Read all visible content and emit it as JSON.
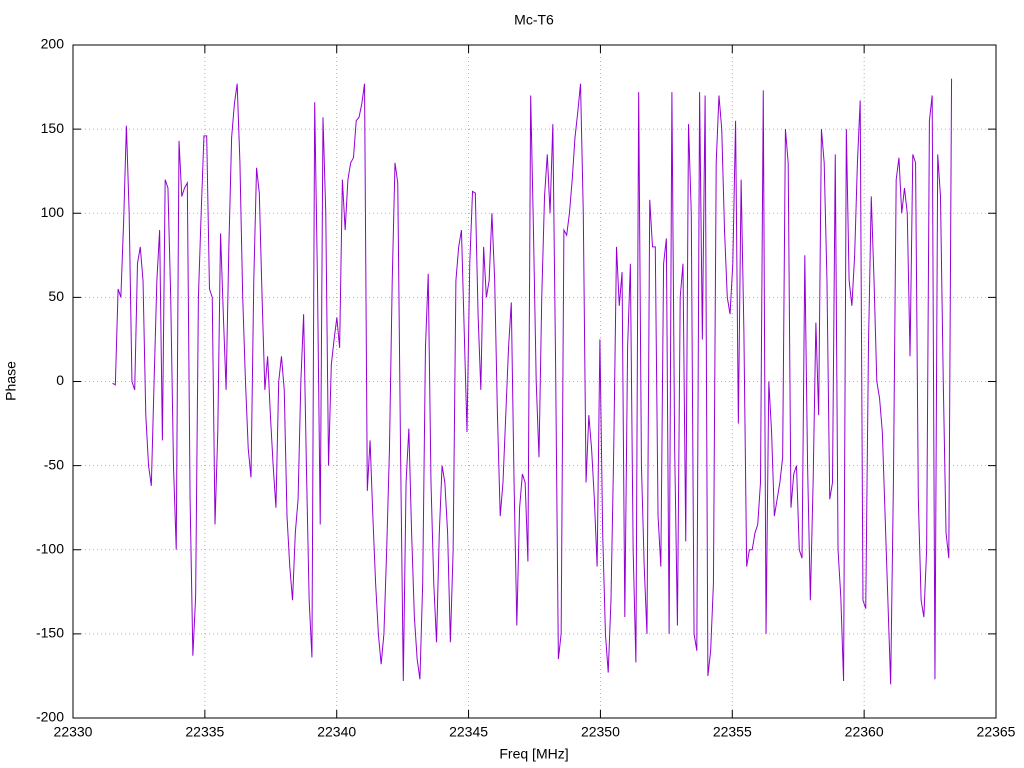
{
  "chart_data": {
    "type": "line",
    "title": "Mc-T6",
    "x_label": "Freq [MHz]",
    "y_label": "Phase",
    "xlim": [
      22330,
      22365
    ],
    "xticks": [
      22330,
      22335,
      22340,
      22345,
      22350,
      22355,
      22360,
      22365
    ],
    "ylim": [
      -200,
      200
    ],
    "yticks": [
      -200,
      -150,
      -100,
      -50,
      0,
      50,
      100,
      150,
      200
    ],
    "grid": true,
    "x": [
      22331.5,
      22331.605,
      22331.71,
      22331.815,
      22331.92,
      22332.025,
      22332.13,
      22332.235,
      22332.34,
      22332.445,
      22332.55,
      22332.655,
      22332.76,
      22332.865,
      22332.97,
      22333.075,
      22333.18,
      22333.285,
      22333.39,
      22333.495,
      22333.6,
      22333.705,
      22333.81,
      22333.915,
      22334.02,
      22334.125,
      22334.23,
      22334.335,
      22334.44,
      22334.545,
      22334.65,
      22334.755,
      22334.86,
      22334.965,
      22335.07,
      22335.175,
      22335.28,
      22335.385,
      22335.49,
      22335.595,
      22335.7,
      22335.805,
      22335.91,
      22336.015,
      22336.12,
      22336.225,
      22336.33,
      22336.435,
      22336.54,
      22336.645,
      22336.75,
      22336.855,
      22336.96,
      22337.065,
      22337.17,
      22337.275,
      22337.38,
      22337.485,
      22337.59,
      22337.695,
      22337.8,
      22337.905,
      22338.01,
      22338.115,
      22338.22,
      22338.325,
      22338.43,
      22338.535,
      22338.64,
      22338.745,
      22338.85,
      22338.955,
      22339.06,
      22339.165,
      22339.27,
      22339.375,
      22339.48,
      22339.585,
      22339.69,
      22339.795,
      22339.9,
      22340.005,
      22340.11,
      22340.215,
      22340.32,
      22340.425,
      22340.53,
      22340.635,
      22340.74,
      22340.845,
      22340.95,
      22341.055,
      22341.16,
      22341.265,
      22341.37,
      22341.475,
      22341.58,
      22341.685,
      22341.79,
      22341.895,
      22342,
      22342.105,
      22342.21,
      22342.315,
      22342.42,
      22342.525,
      22342.63,
      22342.735,
      22342.84,
      22342.945,
      22343.05,
      22343.155,
      22343.26,
      22343.365,
      22343.47,
      22343.575,
      22343.68,
      22343.785,
      22343.89,
      22343.995,
      22344.1,
      22344.205,
      22344.31,
      22344.415,
      22344.52,
      22344.625,
      22344.73,
      22344.835,
      22344.94,
      22345.045,
      22345.15,
      22345.255,
      22345.36,
      22345.465,
      22345.57,
      22345.675,
      22345.78,
      22345.885,
      22345.99,
      22346.095,
      22346.2,
      22346.305,
      22346.41,
      22346.515,
      22346.62,
      22346.725,
      22346.83,
      22346.935,
      22347.04,
      22347.145,
      22347.25,
      22347.355,
      22347.46,
      22347.565,
      22347.67,
      22347.775,
      22347.88,
      22347.985,
      22348.09,
      22348.195,
      22348.3,
      22348.405,
      22348.51,
      22348.615,
      22348.72,
      22348.825,
      22348.93,
      22349.035,
      22349.14,
      22349.245,
      22349.35,
      22349.455,
      22349.56,
      22349.665,
      22349.77,
      22349.875,
      22349.98,
      22350.085,
      22350.19,
      22350.295,
      22350.4,
      22350.505,
      22350.61,
      22350.715,
      22350.82,
      22350.925,
      22351.03,
      22351.135,
      22351.24,
      22351.345,
      22351.45,
      22351.555,
      22351.66,
      22351.765,
      22351.87,
      22351.975,
      22352.08,
      22352.185,
      22352.29,
      22352.395,
      22352.5,
      22352.605,
      22352.71,
      22352.815,
      22352.92,
      22353.025,
      22353.13,
      22353.235,
      22353.34,
      22353.445,
      22353.55,
      22353.655,
      22353.76,
      22353.865,
      22353.97,
      22354.075,
      22354.18,
      22354.285,
      22354.39,
      22354.495,
      22354.6,
      22354.705,
      22354.81,
      22354.915,
      22355.02,
      22355.125,
      22355.23,
      22355.335,
      22355.44,
      22355.545,
      22355.65,
      22355.755,
      22355.86,
      22355.965,
      22356.07,
      22356.175,
      22356.28,
      22356.385,
      22356.49,
      22356.595,
      22356.7,
      22356.805,
      22356.91,
      22357.015,
      22357.12,
      22357.225,
      22357.33,
      22357.435,
      22357.54,
      22357.645,
      22357.75,
      22357.855,
      22357.96,
      22358.065,
      22358.17,
      22358.275,
      22358.38,
      22358.485,
      22358.59,
      22358.695,
      22358.8,
      22358.905,
      22359.01,
      22359.115,
      22359.22,
      22359.325,
      22359.43,
      22359.535,
      22359.64,
      22359.745,
      22359.85,
      22359.955,
      22360.06,
      22360.165,
      22360.27,
      22360.375,
      22360.48,
      22360.585,
      22360.69,
      22360.795,
      22360.9,
      22361.005,
      22361.11,
      22361.215,
      22361.32,
      22361.425,
      22361.53,
      22361.635,
      22361.74,
      22361.845,
      22361.95,
      22362.055,
      22362.16,
      22362.265,
      22362.37,
      22362.475,
      22362.58,
      22362.685,
      22362.79,
      22362.895,
      22363,
      22363.105,
      22363.21,
      22363.315
    ],
    "series": [
      {
        "color": "#9400d3",
        "values": [
          -1,
          -2,
          55,
          50,
          95,
          152,
          100,
          0,
          -5,
          70,
          80,
          60,
          -20,
          -50,
          -62,
          0,
          60,
          90,
          -35,
          120,
          115,
          50,
          -50,
          -100,
          143,
          110,
          115,
          118,
          -70,
          -163,
          -128,
          50,
          100,
          146,
          146,
          55,
          50,
          -85,
          -30,
          88,
          40,
          -5,
          80,
          145,
          165,
          177,
          130,
          50,
          0,
          -40,
          -57,
          60,
          127,
          112,
          50,
          -5,
          15,
          -20,
          -50,
          -75,
          0,
          15,
          -5,
          -80,
          -110,
          -130,
          -90,
          -70,
          0,
          40,
          -50,
          -130,
          -164,
          166,
          60,
          -85,
          157,
          100,
          -50,
          10,
          25,
          38,
          20,
          120,
          90,
          120,
          130,
          133,
          155,
          157,
          165,
          177,
          -65,
          -35,
          -80,
          -120,
          -150,
          -168,
          -150,
          -100,
          -40,
          60,
          130,
          118,
          -40,
          -178,
          -60,
          -28,
          -90,
          -140,
          -165,
          -177,
          -120,
          20,
          64,
          -60,
          -120,
          -155,
          -90,
          -50,
          -60,
          -90,
          -155,
          -100,
          60,
          80,
          90,
          30,
          -30,
          70,
          113,
          112,
          40,
          -5,
          80,
          50,
          60,
          100,
          60,
          -20,
          -80,
          -60,
          -20,
          20,
          47,
          -60,
          -145,
          -75,
          -55,
          -60,
          -107,
          170,
          90,
          0,
          -45,
          50,
          110,
          135,
          100,
          153,
          10,
          -165,
          -150,
          90,
          87,
          100,
          120,
          145,
          160,
          177,
          100,
          -60,
          -20,
          -40,
          -70,
          -110,
          25,
          -90,
          -150,
          -173,
          -130,
          -40,
          80,
          45,
          65,
          -140,
          20,
          70,
          -100,
          -167,
          172,
          -50,
          -110,
          -150,
          108,
          80,
          80,
          -80,
          -110,
          70,
          85,
          -150,
          172,
          -40,
          -145,
          50,
          70,
          -95,
          153,
          100,
          -150,
          -160,
          172,
          25,
          170,
          -175,
          -160,
          -120,
          130,
          170,
          150,
          90,
          50,
          40,
          70,
          155,
          -25,
          120,
          30,
          -110,
          -100,
          -100,
          -90,
          -85,
          -60,
          173,
          -150,
          0,
          -30,
          -80,
          -70,
          -60,
          -45,
          150,
          130,
          -75,
          -55,
          -50,
          -100,
          -105,
          75,
          -50,
          -130,
          -60,
          35,
          -20,
          150,
          130,
          60,
          -70,
          -60,
          135,
          -100,
          -128,
          -178,
          150,
          60,
          45,
          75,
          130,
          167,
          -130,
          -135,
          22,
          110,
          60,
          0,
          -10,
          -30,
          -80,
          -130,
          -180,
          -60,
          120,
          133,
          100,
          115,
          100,
          15,
          135,
          130,
          -70,
          -130,
          -140,
          -100,
          155,
          170,
          -177,
          135,
          110,
          0,
          -90,
          -105,
          180
        ]
      }
    ]
  }
}
